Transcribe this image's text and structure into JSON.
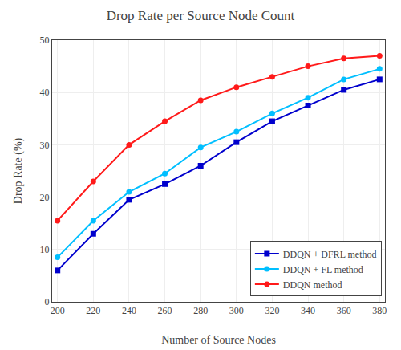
{
  "chart_data": {
    "type": "line",
    "title": "Drop Rate per Source Node Count",
    "xlabel": "Number of Source Nodes",
    "ylabel": "Drop Rate (%)",
    "x": [
      200,
      220,
      240,
      260,
      280,
      300,
      320,
      340,
      360,
      380
    ],
    "series": [
      {
        "name": "DDQN + DFRL method",
        "color": "#0000CD",
        "marker": "square",
        "values": [
          6,
          13,
          19.5,
          22.5,
          26,
          30.5,
          34.5,
          37.5,
          40.5,
          42.5
        ]
      },
      {
        "name": "DDQN + FL method",
        "color": "#00BFFF",
        "marker": "circle",
        "values": [
          8.5,
          15.5,
          21,
          24.5,
          29.5,
          32.5,
          36,
          39,
          42.5,
          44.5
        ]
      },
      {
        "name": "DDQN method",
        "color": "#FF1A1A",
        "marker": "circle",
        "values": [
          15.5,
          23,
          30,
          34.5,
          38.5,
          41,
          43,
          45,
          46.5,
          47
        ]
      }
    ],
    "xlim": [
      197,
      383
    ],
    "ylim": [
      0,
      50
    ],
    "xticks": [
      200,
      220,
      240,
      260,
      280,
      300,
      320,
      340,
      360,
      380
    ],
    "yticks": [
      0,
      10,
      20,
      30,
      40,
      50
    ],
    "grid": true,
    "legend": "lower right"
  }
}
